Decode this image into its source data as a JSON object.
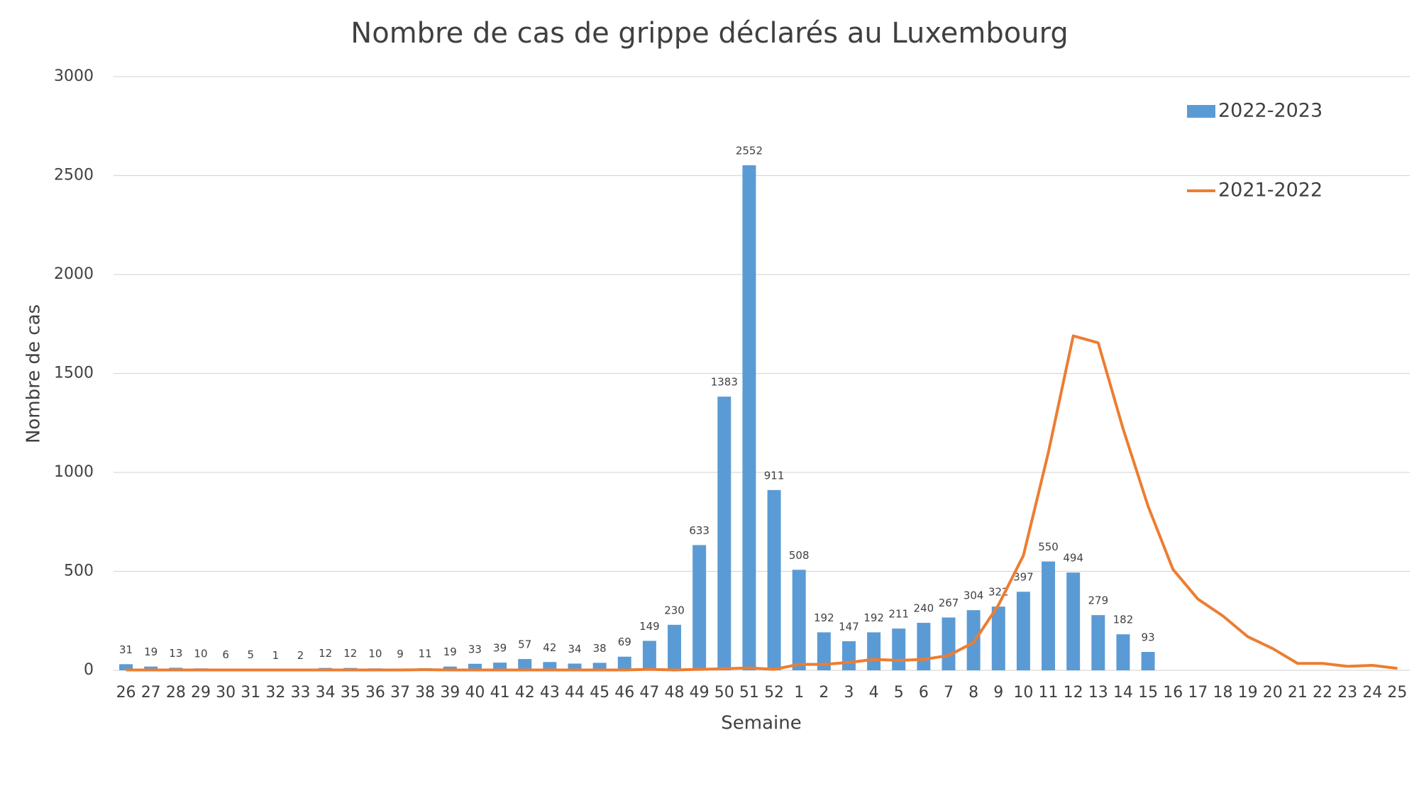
{
  "chart_data": {
    "type": "bar_line",
    "title": "Nombre de cas de grippe déclarés au Luxembourg",
    "x_label": "Semaine",
    "y_label": "Nombre de cas",
    "categories": [
      "26",
      "27",
      "28",
      "29",
      "30",
      "31",
      "32",
      "33",
      "34",
      "35",
      "36",
      "37",
      "38",
      "39",
      "40",
      "41",
      "42",
      "43",
      "44",
      "45",
      "46",
      "47",
      "48",
      "49",
      "50",
      "51",
      "52",
      "1",
      "2",
      "3",
      "4",
      "5",
      "6",
      "7",
      "8",
      "9",
      "10",
      "11",
      "12",
      "13",
      "14",
      "15",
      "16",
      "17",
      "18",
      "19",
      "20",
      "21",
      "22",
      "23",
      "24",
      "25"
    ],
    "series": [
      {
        "name": "2022-2023",
        "type": "bar",
        "color": "#5b9bd5",
        "values": [
          31,
          19,
          13,
          10,
          6,
          5,
          1,
          2,
          12,
          12,
          10,
          9,
          11,
          19,
          33,
          39,
          57,
          42,
          34,
          38,
          69,
          149,
          230,
          633,
          1383,
          2552,
          911,
          508,
          192,
          147,
          192,
          211,
          240,
          267,
          304,
          322,
          397,
          550,
          494,
          279,
          182,
          93,
          null,
          null,
          null,
          null,
          null,
          null,
          null,
          null,
          null,
          null
        ]
      },
      {
        "name": "2021-2022",
        "type": "line",
        "color": "#ed7d31",
        "values": [
          2,
          2,
          2,
          2,
          2,
          2,
          2,
          2,
          2,
          2,
          2,
          2,
          3,
          2,
          2,
          2,
          2,
          2,
          2,
          2,
          2,
          5,
          2,
          5,
          8,
          12,
          5,
          30,
          30,
          40,
          55,
          50,
          55,
          75,
          140,
          330,
          580,
          1100,
          1690,
          1655,
          1220,
          830,
          510,
          360,
          275,
          170,
          110,
          35,
          35,
          20,
          25,
          10
        ]
      }
    ],
    "ylim": [
      0,
      3000
    ],
    "yticks": [
      0,
      500,
      1000,
      1500,
      2000,
      2500,
      3000
    ],
    "grid": true,
    "legend": "upper right"
  }
}
